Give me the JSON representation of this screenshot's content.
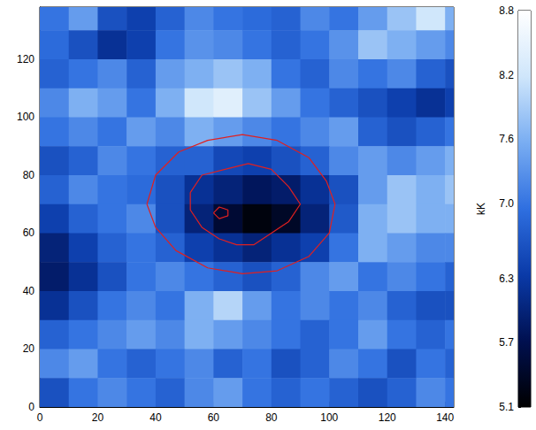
{
  "chart_data": {
    "type": "heatmap",
    "xlim": [
      0,
      143
    ],
    "xticks": [
      0,
      20,
      40,
      60,
      80,
      100,
      120,
      140
    ],
    "ylim": [
      0,
      138
    ],
    "yticks": [
      0,
      20,
      40,
      60,
      80,
      100,
      120
    ],
    "x": [
      5,
      15,
      25,
      35,
      45,
      55,
      65,
      75,
      85,
      95,
      105,
      115,
      125,
      135,
      145
    ],
    "y": [
      135,
      125,
      115,
      105,
      95,
      85,
      75,
      65,
      55,
      45,
      35,
      25,
      15,
      5
    ],
    "cells": [
      [
        7.0,
        7.4,
        6.6,
        6.4,
        6.8,
        7.2,
        7.0,
        6.9,
        6.8,
        7.2,
        7.0,
        7.4,
        7.8,
        8.2,
        7.6
      ],
      [
        6.9,
        6.6,
        6.2,
        6.4,
        7.0,
        7.3,
        7.2,
        7.0,
        6.8,
        7.0,
        7.3,
        7.8,
        7.6,
        7.4,
        7.2
      ],
      [
        6.8,
        7.0,
        7.2,
        6.8,
        7.4,
        7.6,
        7.8,
        7.6,
        7.0,
        6.8,
        7.2,
        7.0,
        7.2,
        6.8,
        6.6
      ],
      [
        7.2,
        7.6,
        7.4,
        7.0,
        7.6,
        8.2,
        8.4,
        7.8,
        7.4,
        7.0,
        6.8,
        6.6,
        6.4,
        6.2,
        6.4
      ],
      [
        7.0,
        7.2,
        7.0,
        7.4,
        7.2,
        7.6,
        7.4,
        7.2,
        7.0,
        7.2,
        7.4,
        6.8,
        6.6,
        6.8,
        7.0
      ],
      [
        6.6,
        6.8,
        7.2,
        7.0,
        6.8,
        6.8,
        6.5,
        6.4,
        6.6,
        6.8,
        7.2,
        7.4,
        7.2,
        7.4,
        7.6
      ],
      [
        6.8,
        7.2,
        7.0,
        6.9,
        6.6,
        6.2,
        6.0,
        5.8,
        5.9,
        6.2,
        6.6,
        7.4,
        7.8,
        7.6,
        7.8
      ],
      [
        6.4,
        6.8,
        7.0,
        7.2,
        6.6,
        6.0,
        5.5,
        5.2,
        5.4,
        6.0,
        6.7,
        7.6,
        7.8,
        7.6,
        7.6
      ],
      [
        6.0,
        6.4,
        6.8,
        7.0,
        6.8,
        6.4,
        6.2,
        6.0,
        6.2,
        6.4,
        7.0,
        7.6,
        7.4,
        7.2,
        7.2
      ],
      [
        5.9,
        6.2,
        6.6,
        7.0,
        7.2,
        7.0,
        6.8,
        6.6,
        6.8,
        7.2,
        7.4,
        7.0,
        7.2,
        7.0,
        6.8
      ],
      [
        6.2,
        6.6,
        7.0,
        7.2,
        7.0,
        7.6,
        8.0,
        7.4,
        7.0,
        7.2,
        7.0,
        7.2,
        6.8,
        6.6,
        6.6
      ],
      [
        6.8,
        7.0,
        7.2,
        7.4,
        7.2,
        7.6,
        7.4,
        7.2,
        7.0,
        6.8,
        7.0,
        7.4,
        7.0,
        6.8,
        7.0
      ],
      [
        7.2,
        7.4,
        7.0,
        6.8,
        7.0,
        7.2,
        6.8,
        7.0,
        6.6,
        6.8,
        7.2,
        7.0,
        6.6,
        7.0,
        6.8
      ],
      [
        6.6,
        7.0,
        7.2,
        7.0,
        6.8,
        7.2,
        7.4,
        7.0,
        6.8,
        7.0,
        6.8,
        6.6,
        6.8,
        7.2,
        7.0
      ]
    ],
    "contours": [
      {
        "color": "#e02020",
        "x": [
          37,
          40,
          48,
          58,
          70,
          82,
          93,
          99,
          102,
          100,
          93,
          82,
          70,
          58,
          47,
          40,
          37
        ],
        "y": [
          70,
          80,
          88,
          92,
          94,
          92,
          86,
          78,
          70,
          60,
          52,
          47,
          46,
          48,
          54,
          62,
          70
        ]
      },
      {
        "color": "#e02020",
        "x": [
          52,
          56,
          64,
          72,
          80,
          86,
          90,
          86,
          80,
          74,
          68,
          62,
          56,
          52,
          52
        ],
        "y": [
          74,
          80,
          82,
          84,
          82,
          76,
          70,
          64,
          60,
          56,
          56,
          58,
          62,
          68,
          74
        ]
      },
      {
        "color": "#e02020",
        "x": [
          60,
          62,
          65,
          65,
          62,
          60
        ],
        "y": [
          67,
          69,
          68,
          66,
          65,
          67
        ]
      }
    ],
    "colorbar": {
      "label": "kK",
      "range": [
        5.1,
        8.8
      ],
      "ticks": [
        5.1,
        5.7,
        6.3,
        {
          "value": 7,
          "label": "7.0"
        },
        7.6,
        8.2,
        8.8
      ]
    }
  }
}
